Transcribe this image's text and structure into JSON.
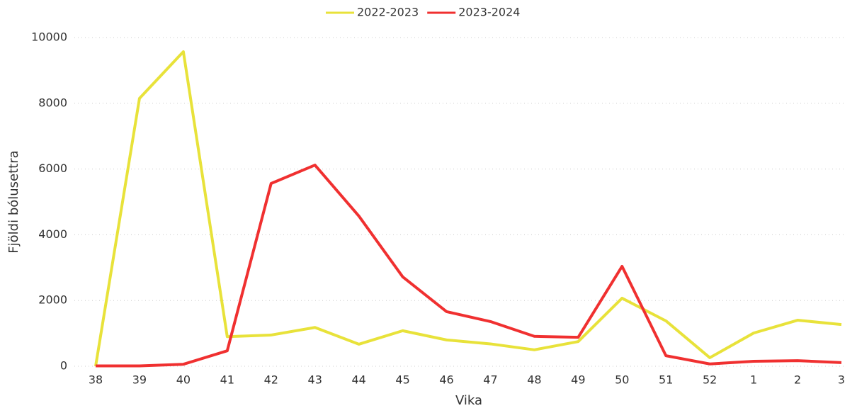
{
  "chart_data": {
    "type": "line",
    "x_label": "Vika",
    "y_label": "Fjöldi bólusettra",
    "categories": [
      "38",
      "39",
      "40",
      "41",
      "42",
      "43",
      "44",
      "45",
      "46",
      "47",
      "48",
      "49",
      "50",
      "51",
      "52",
      "1",
      "2",
      "3"
    ],
    "series": [
      {
        "name": "2022-2023",
        "color": "#e8e23a",
        "values": [
          0,
          8150,
          9570,
          900,
          950,
          1180,
          670,
          1080,
          800,
          680,
          500,
          750,
          2070,
          1380,
          260,
          1010,
          1400,
          1270
        ]
      },
      {
        "name": "2023-2024",
        "color": "#f03030",
        "values": [
          10,
          10,
          60,
          470,
          5560,
          6120,
          4570,
          2720,
          1660,
          1360,
          910,
          880,
          3040,
          320,
          70,
          150,
          170,
          110
        ]
      }
    ],
    "ylim": [
      0,
      10000
    ],
    "yticks": [
      0,
      2000,
      4000,
      6000,
      8000,
      10000
    ],
    "grid": true,
    "legend": "top"
  }
}
